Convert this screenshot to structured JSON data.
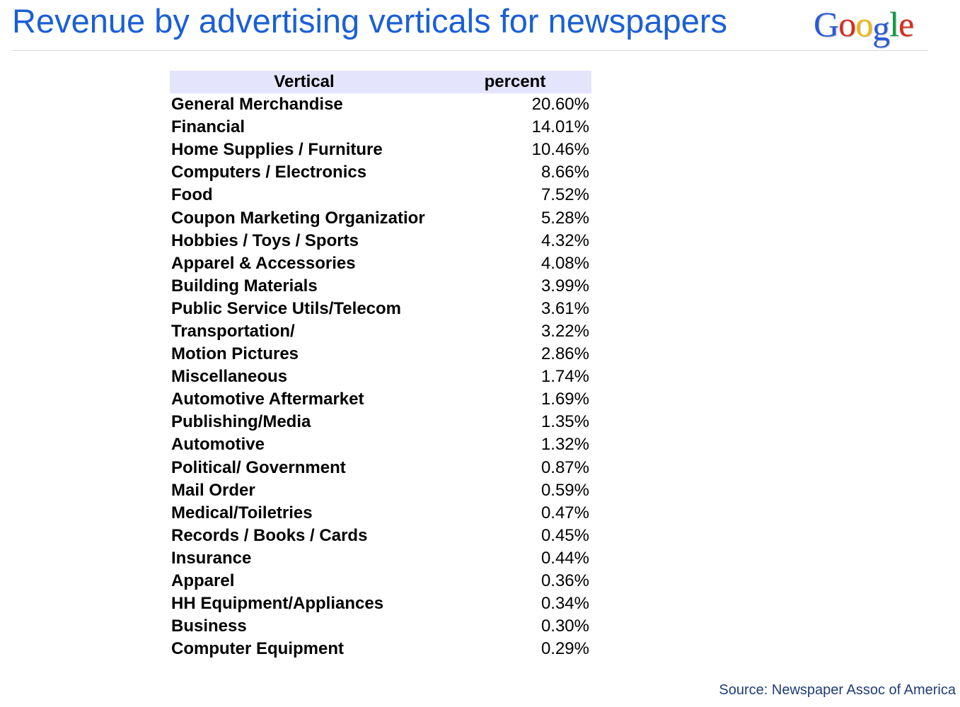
{
  "slide": {
    "title": "Revenue by advertising verticals for newspapers",
    "source": "Source: Newspaper Assoc of America"
  },
  "logo": {
    "text": "Google",
    "letters": [
      {
        "char": "G",
        "color": "#2a5bd7"
      },
      {
        "char": "o",
        "color": "#d62d20"
      },
      {
        "char": "o",
        "color": "#f2b50f"
      },
      {
        "char": "g",
        "color": "#2a5bd7"
      },
      {
        "char": "l",
        "color": "#139c46"
      },
      {
        "char": "e",
        "color": "#d62d20"
      }
    ]
  },
  "table": {
    "headers": {
      "vertical": "Vertical",
      "percent": "percent"
    },
    "rows": [
      {
        "vertical": "General Merchandise",
        "percent": "20.60%"
      },
      {
        "vertical": "Financial",
        "percent": "14.01%"
      },
      {
        "vertical": "Home Supplies / Furniture",
        "percent": "10.46%"
      },
      {
        "vertical": "Computers / Electronics",
        "percent": "8.66%"
      },
      {
        "vertical": "Food",
        "percent": "7.52%"
      },
      {
        "vertical": "Coupon Marketing Organizatior",
        "percent": "5.28%"
      },
      {
        "vertical": "Hobbies / Toys / Sports",
        "percent": "4.32%"
      },
      {
        "vertical": "Apparel & Accessories",
        "percent": "4.08%"
      },
      {
        "vertical": "Building Materials",
        "percent": "3.99%"
      },
      {
        "vertical": "Public Service Utils/Telecom",
        "percent": "3.61%"
      },
      {
        "vertical": "Transportation/",
        "percent": "3.22%"
      },
      {
        "vertical": "Motion Pictures",
        "percent": "2.86%"
      },
      {
        "vertical": "Miscellaneous",
        "percent": "1.74%"
      },
      {
        "vertical": "Automotive Aftermarket",
        "percent": "1.69%"
      },
      {
        "vertical": "Publishing/Media",
        "percent": "1.35%"
      },
      {
        "vertical": "Automotive",
        "percent": "1.32%"
      },
      {
        "vertical": "Political/ Government",
        "percent": "0.87%"
      },
      {
        "vertical": "Mail Order",
        "percent": "0.59%"
      },
      {
        "vertical": "Medical/Toiletries",
        "percent": "0.47%"
      },
      {
        "vertical": "Records / Books / Cards",
        "percent": "0.45%"
      },
      {
        "vertical": "Insurance",
        "percent": "0.44%"
      },
      {
        "vertical": "Apparel",
        "percent": "0.36%"
      },
      {
        "vertical": "HH Equipment/Appliances",
        "percent": "0.34%"
      },
      {
        "vertical": "Business",
        "percent": "0.30%"
      },
      {
        "vertical": "Computer Equipment",
        "percent": "0.29%"
      }
    ]
  }
}
